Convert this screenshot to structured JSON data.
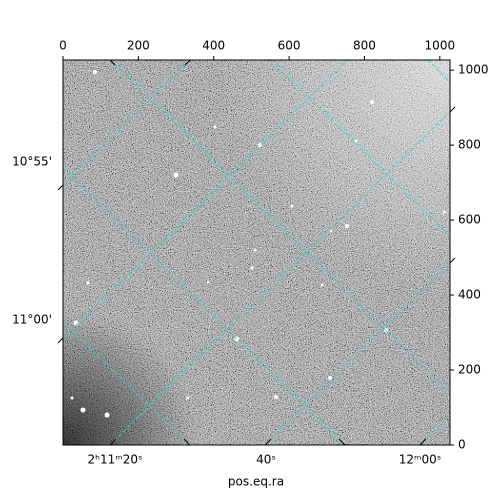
{
  "chart_data": {
    "type": "image",
    "xlabel": "pos.eq.ra",
    "xlim": [
      0,
      1027
    ],
    "ylim": [
      0,
      1027
    ],
    "xticks": [
      0,
      200,
      400,
      600,
      800,
      1000
    ],
    "yticks": [
      0,
      200,
      400,
      600,
      800,
      1000
    ],
    "ra_labels": [
      "2ʰ11ᵐ20ˢ",
      "40ˢ",
      "12ᵐ00ˢ"
    ],
    "dec_labels": [
      "10°55'",
      "11°00'"
    ],
    "grid": true
  }
}
